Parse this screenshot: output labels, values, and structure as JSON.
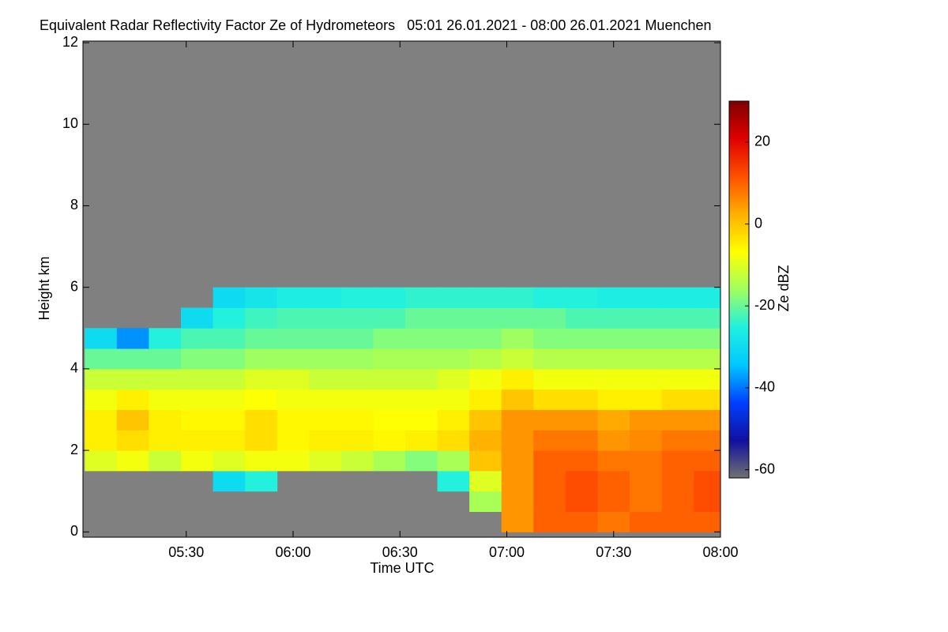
{
  "chart_data": {
    "type": "heatmap",
    "title": "Equivalent Radar Reflectivity Factor Ze of Hydrometeors   05:01 26.01.2021 - 08:00 26.01.2021 Muenchen",
    "x_label": "Time UTC",
    "y_label": "Height km",
    "colorbar_label": "Ze dBZ",
    "background": "#808080",
    "xlim": [
      5.0167,
      8.0
    ],
    "xticks": [
      {
        "value": 5.5,
        "label": "05:30"
      },
      {
        "value": 6.0,
        "label": "06:00"
      },
      {
        "value": 6.5,
        "label": "06:30"
      },
      {
        "value": 7.0,
        "label": "07:00"
      },
      {
        "value": 7.5,
        "label": "07:30"
      },
      {
        "value": 8.0,
        "label": "08:00"
      }
    ],
    "ylim": [
      -0.13,
      12.04
    ],
    "yticks": [
      0,
      2,
      4,
      6,
      8,
      10,
      12
    ],
    "zlim": [
      -62,
      30
    ],
    "zticks": [
      -60,
      -40,
      -20,
      0,
      20
    ],
    "colors": [
      "#707070",
      "#1010a0",
      "#0040ff",
      "#00c8ff",
      "#20f0e0",
      "#a0ff60",
      "#ffff00",
      "#ffb000",
      "#ff5000",
      "#e00000",
      "#800000"
    ],
    "x": [
      5.1,
      5.25,
      5.4,
      5.55,
      5.7,
      5.85,
      6.0,
      6.15,
      6.3,
      6.45,
      6.6,
      6.75,
      6.9,
      7.05,
      7.2,
      7.35,
      7.5,
      7.65,
      7.8,
      7.95
    ],
    "y": [
      0.25,
      0.75,
      1.25,
      1.75,
      2.25,
      2.75,
      3.25,
      3.75,
      4.25,
      4.75,
      5.25,
      5.75
    ],
    "values": [
      [
        null,
        null,
        null,
        null,
        null,
        null,
        null,
        null,
        null,
        null,
        null,
        null,
        null,
        5,
        10,
        10,
        8,
        10,
        10,
        10
      ],
      [
        null,
        null,
        null,
        null,
        null,
        null,
        null,
        null,
        null,
        null,
        null,
        null,
        -15,
        5,
        10,
        12,
        10,
        8,
        10,
        12
      ],
      [
        null,
        null,
        null,
        null,
        -30,
        -25,
        null,
        null,
        null,
        null,
        null,
        -25,
        -10,
        5,
        10,
        12,
        10,
        8,
        10,
        12
      ],
      [
        -10,
        -8,
        -12,
        -8,
        -10,
        -8,
        -8,
        -10,
        -12,
        -15,
        -18,
        -15,
        0,
        5,
        10,
        10,
        8,
        8,
        10,
        10
      ],
      [
        -5,
        -3,
        -5,
        -5,
        -5,
        -3,
        -6,
        -5,
        -5,
        -6,
        -5,
        -3,
        2,
        5,
        8,
        8,
        5,
        6,
        8,
        8
      ],
      [
        -5,
        0,
        -5,
        -6,
        -6,
        -3,
        -6,
        -6,
        -6,
        -7,
        -7,
        -5,
        0,
        5,
        5,
        5,
        3,
        5,
        5,
        5
      ],
      [
        -8,
        -5,
        -8,
        -8,
        -8,
        -7,
        -8,
        -8,
        -8,
        -8,
        -8,
        -8,
        -5,
        0,
        -3,
        -3,
        -5,
        -5,
        -3,
        -3
      ],
      [
        -12,
        -12,
        -12,
        -12,
        -12,
        -10,
        -10,
        -12,
        -12,
        -12,
        -12,
        -10,
        -8,
        -5,
        -8,
        -8,
        -8,
        -8,
        -8,
        -8
      ],
      [
        -20,
        -20,
        -20,
        -18,
        -18,
        -16,
        -16,
        -16,
        -16,
        -15,
        -15,
        -15,
        -14,
        -12,
        -14,
        -14,
        -14,
        -14,
        -14,
        -14
      ],
      [
        -30,
        -38,
        -25,
        -22,
        -22,
        -20,
        -20,
        -20,
        -20,
        -18,
        -18,
        -18,
        -18,
        -16,
        -18,
        -18,
        -18,
        -18,
        -18,
        -18
      ],
      [
        null,
        null,
        null,
        -30,
        -25,
        -23,
        -22,
        -22,
        -22,
        -22,
        -20,
        -20,
        -20,
        -20,
        -20,
        -22,
        -22,
        -22,
        -22,
        -22
      ],
      [
        null,
        null,
        null,
        null,
        -30,
        -28,
        -26,
        -26,
        -25,
        -25,
        -24,
        -24,
        -24,
        -24,
        -25,
        -25,
        -26,
        -26,
        -26,
        -26
      ]
    ]
  }
}
